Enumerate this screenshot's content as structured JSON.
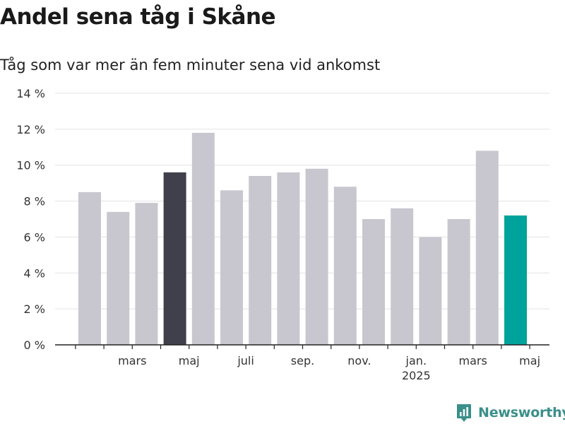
{
  "chart_data": {
    "type": "bar",
    "title": "Andel sena tåg i Skåne",
    "subtitle": "Tåg som var mer än fem minuter sena vid ankomst",
    "values": [
      8.5,
      7.4,
      7.9,
      9.6,
      11.8,
      8.6,
      9.4,
      9.6,
      9.8,
      8.8,
      7.0,
      7.6,
      6.0,
      7.0,
      10.8,
      7.2
    ],
    "x_tick_labels": [
      {
        "index": 1.5,
        "label": "mars"
      },
      {
        "index": 3.5,
        "label": "maj"
      },
      {
        "index": 5.5,
        "label": "juli"
      },
      {
        "index": 7.5,
        "label": "sep."
      },
      {
        "index": 9.5,
        "label": "nov."
      },
      {
        "index": 11.5,
        "label": "jan.",
        "sublabel": "2025"
      },
      {
        "index": 13.5,
        "label": "mars"
      },
      {
        "index": 15.5,
        "label": "maj"
      }
    ],
    "y_ticks": [
      0,
      2,
      4,
      6,
      8,
      10,
      12,
      14
    ],
    "y_tick_labels": [
      "0 %",
      "2 %",
      "4 %",
      "6 %",
      "8 %",
      "10 %",
      "12 %",
      "14 %"
    ],
    "ylim": [
      0,
      14
    ],
    "grid": true,
    "colors": {
      "default": "#c8c7cf",
      "highlight_dark": "#40404c",
      "highlight_latest": "#00a39b",
      "grid": "#e3e3e3",
      "axis": "#222222"
    },
    "highlight_dark_index": 3,
    "highlight_latest_index": 15
  },
  "brand": {
    "name": "Newsworthy",
    "icon": "newsworthy-logo-icon"
  }
}
